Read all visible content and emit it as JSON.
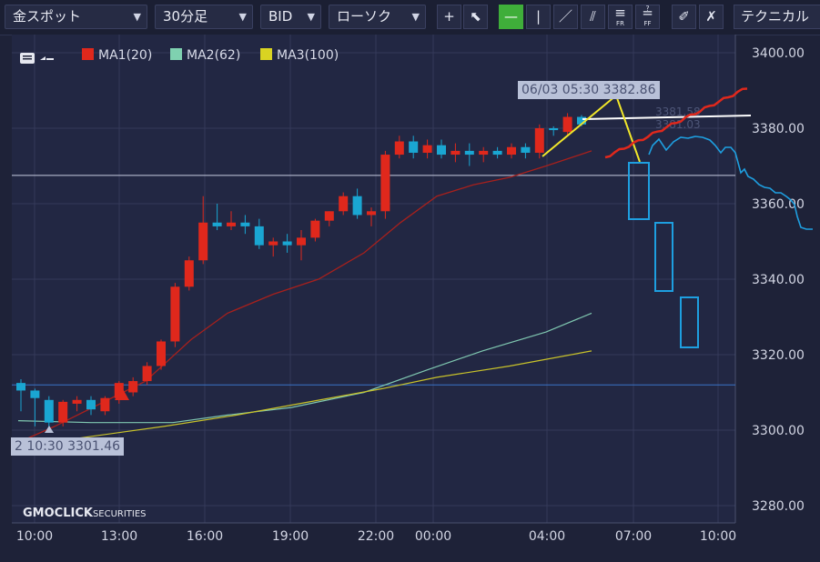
{
  "toolbar": {
    "instrument": "金スポット",
    "timeframe": "30分足",
    "price_type": "BID",
    "chart_style": "ローソク",
    "technical": "テクニカル",
    "tools": {
      "crosshair": "+",
      "pointer": "⬉",
      "hline": "—",
      "vline": "|",
      "trend": "／",
      "channel": "⫽",
      "fr": "FR",
      "ff": "FF",
      "erase": "✐",
      "erase_all": "✗"
    }
  },
  "legend": {
    "ma1": {
      "label": "MA1(20)",
      "color": "#e0281c"
    },
    "ma2": {
      "label": "MA2(62)",
      "color": "#7fd1b0"
    },
    "ma3": {
      "label": "MA3(100)",
      "color": "#d9d322"
    }
  },
  "tooltips": {
    "high": "06/03 05:30 3382.86",
    "low": "2 10:30 3301.46"
  },
  "logo": {
    "main": "GMOCLICK",
    "sub": "SECURITIES"
  },
  "chart_data": {
    "type": "candlestick",
    "ylim": [
      3275,
      3402
    ],
    "yticks": [
      3400,
      3380,
      3360,
      3340,
      3320,
      3300,
      3280
    ],
    "ytick_labels": [
      "3400.00",
      "3380.00",
      "3360.00",
      "3340.00",
      "3320.00",
      "3300.00",
      "3280.00"
    ],
    "xtick_labels": [
      "10:00",
      "13:00",
      "16:00",
      "19:00",
      "22:00",
      "00:00",
      "04:00",
      "07:00",
      "10:00"
    ],
    "colors": {
      "up": "#e0281c",
      "down": "#1aa6d2",
      "forecast": "#1e9fe0"
    },
    "candles": [
      [
        3312.5,
        3313.5,
        3305,
        3310.5
      ],
      [
        3310.5,
        3311,
        3301,
        3308.5
      ],
      [
        3308,
        3309,
        3300,
        3302
      ],
      [
        3302,
        3308,
        3301,
        3307.5
      ],
      [
        3307,
        3309,
        3305,
        3308
      ],
      [
        3308,
        3309,
        3304,
        3305.5
      ],
      [
        3305,
        3309,
        3304,
        3308.5
      ],
      [
        3308.5,
        3313,
        3307,
        3312.5
      ],
      [
        3310,
        3314,
        3309,
        3313
      ],
      [
        3313,
        3318,
        3312,
        3317
      ],
      [
        3317,
        3324,
        3316,
        3323.5
      ],
      [
        3323.5,
        3339,
        3322,
        3338
      ],
      [
        3338,
        3346,
        3337,
        3345
      ],
      [
        3345,
        3362,
        3344,
        3355
      ],
      [
        3355,
        3360,
        3353,
        3354
      ],
      [
        3354,
        3358,
        3353,
        3355
      ],
      [
        3355,
        3357,
        3352,
        3354
      ],
      [
        3354,
        3356,
        3348,
        3349
      ],
      [
        3349,
        3351,
        3346,
        3350
      ],
      [
        3350,
        3352,
        3347,
        3349
      ],
      [
        3349,
        3353,
        3345,
        3351
      ],
      [
        3351,
        3356,
        3350,
        3355.5
      ],
      [
        3355.5,
        3358,
        3354,
        3358
      ],
      [
        3358,
        3363,
        3357,
        3362
      ],
      [
        3362,
        3364,
        3356,
        3357
      ],
      [
        3357,
        3359,
        3354,
        3358
      ],
      [
        3358,
        3374,
        3356,
        3373
      ],
      [
        3373,
        3378,
        3372,
        3376.5
      ],
      [
        3376.5,
        3378,
        3372,
        3373.5
      ],
      [
        3373.5,
        3377,
        3372,
        3375.5
      ],
      [
        3375.5,
        3377,
        3372,
        3373
      ],
      [
        3373,
        3376,
        3371,
        3374
      ],
      [
        3374,
        3376,
        3370,
        3373
      ],
      [
        3373,
        3375,
        3371,
        3374
      ],
      [
        3374,
        3375,
        3372,
        3373
      ],
      [
        3373,
        3376,
        3372,
        3375
      ],
      [
        3375,
        3376,
        3372,
        3373.5
      ],
      [
        3373.5,
        3381,
        3372,
        3380
      ],
      [
        3380,
        3380.5,
        3378,
        3379.5
      ],
      [
        3379,
        3384,
        3378,
        3383
      ],
      [
        3383,
        3383.5,
        3380.5,
        3381
      ]
    ],
    "hline_level": 3367.5,
    "blue_hline_level": 3312,
    "annotation_values": [
      "3381.58",
      "3381.03"
    ]
  }
}
